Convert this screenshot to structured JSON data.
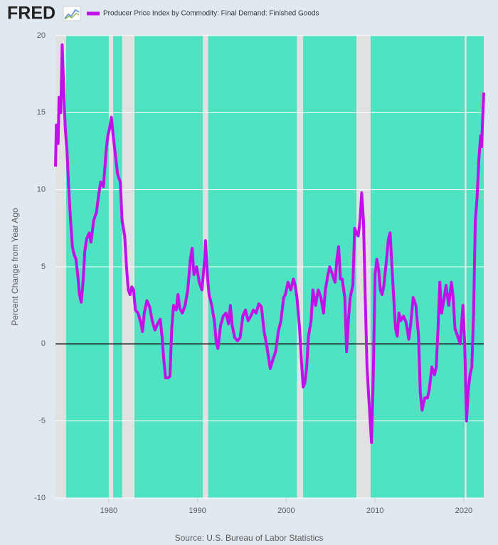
{
  "logo": "FRED",
  "chart_data": {
    "type": "line",
    "y_label": "Percent Change from Year Ago",
    "source": "Source: U.S. Bureau of Labor Statistics",
    "xlim": [
      1974.0,
      2022.25
    ],
    "xticks": [
      1980,
      1990,
      2000,
      2010,
      2020
    ],
    "ylim": [
      -10,
      20
    ],
    "yticks": [
      -10,
      -5,
      0,
      5,
      10,
      15,
      20
    ],
    "grid": true,
    "zero_line": true,
    "recessions": [
      [
        1973.9,
        1975.2
      ],
      [
        1980.0,
        1980.5
      ],
      [
        1981.5,
        1982.9
      ],
      [
        1990.6,
        1991.2
      ],
      [
        2001.2,
        2001.9
      ],
      [
        2007.9,
        2009.5
      ],
      [
        2020.1,
        2020.3
      ]
    ],
    "x": [
      1974.0,
      1974.1,
      1974.3,
      1974.4,
      1974.6,
      1974.75,
      1974.9,
      1975.1,
      1975.3,
      1975.5,
      1975.7,
      1975.9,
      1976.1,
      1976.3,
      1976.5,
      1976.7,
      1976.9,
      1977.1,
      1977.3,
      1977.5,
      1977.8,
      1978.0,
      1978.3,
      1978.6,
      1978.9,
      1979.1,
      1979.4,
      1979.7,
      1979.9,
      1980.1,
      1980.3,
      1980.5,
      1980.8,
      1981.0,
      1981.3,
      1981.5,
      1981.8,
      1982.0,
      1982.2,
      1982.4,
      1982.6,
      1982.8,
      1983.0,
      1983.3,
      1983.6,
      1983.8,
      1984.0,
      1984.3,
      1984.6,
      1984.9,
      1985.2,
      1985.5,
      1985.8,
      1986.0,
      1986.2,
      1986.4,
      1986.7,
      1986.9,
      1987.1,
      1987.3,
      1987.6,
      1987.8,
      1988.0,
      1988.3,
      1988.6,
      1988.9,
      1989.2,
      1989.4,
      1989.6,
      1989.9,
      1990.2,
      1990.5,
      1990.8,
      1990.9,
      1991.1,
      1991.3,
      1991.6,
      1991.9,
      1992.1,
      1992.3,
      1992.6,
      1992.9,
      1993.2,
      1993.5,
      1993.7,
      1993.9,
      1994.2,
      1994.5,
      1994.8,
      1995.1,
      1995.4,
      1995.7,
      1996.0,
      1996.3,
      1996.6,
      1996.9,
      1997.2,
      1997.5,
      1997.7,
      1997.9,
      1998.2,
      1998.5,
      1998.8,
      1999.1,
      1999.4,
      1999.7,
      1999.9,
      2000.2,
      2000.5,
      2000.8,
      2001.0,
      2001.2,
      2001.5,
      2001.7,
      2001.9,
      2002.1,
      2002.3,
      2002.5,
      2002.8,
      2003.0,
      2003.3,
      2003.6,
      2003.9,
      2004.2,
      2004.4,
      2004.7,
      2004.9,
      2005.2,
      2005.5,
      2005.7,
      2005.9,
      2006.1,
      2006.3,
      2006.6,
      2006.8,
      2007.0,
      2007.2,
      2007.5,
      2007.7,
      2007.9,
      2008.1,
      2008.3,
      2008.5,
      2008.7,
      2008.9,
      2009.1,
      2009.3,
      2009.45,
      2009.6,
      2009.8,
      2010.0,
      2010.2,
      2010.4,
      2010.6,
      2010.8,
      2011.0,
      2011.3,
      2011.5,
      2011.7,
      2011.9,
      2012.1,
      2012.3,
      2012.5,
      2012.7,
      2012.9,
      2013.2,
      2013.5,
      2013.8,
      2014.0,
      2014.3,
      2014.6,
      2014.9,
      2015.1,
      2015.3,
      2015.6,
      2015.9,
      2016.1,
      2016.4,
      2016.7,
      2016.9,
      2017.1,
      2017.3,
      2017.5,
      2017.8,
      2018.0,
      2018.3,
      2018.6,
      2018.8,
      2019.0,
      2019.3,
      2019.6,
      2019.9,
      2020.1,
      2020.3,
      2020.5,
      2020.7,
      2020.9,
      2021.1,
      2021.3,
      2021.5,
      2021.7,
      2021.9,
      2022.0,
      2022.15,
      2022.25
    ],
    "series": [
      {
        "name": "Producer Price Index by Commodity: Final Demand: Finished Goods",
        "color": "#c011e8",
        "values": [
          11.5,
          14.2,
          13,
          16,
          15,
          19.4,
          17,
          14,
          12.5,
          10,
          8,
          6.3,
          5.8,
          5.5,
          4.5,
          3.2,
          2.7,
          4,
          6,
          6.8,
          7.2,
          6.6,
          8,
          8.5,
          9.8,
          10.5,
          10.2,
          12.5,
          13.5,
          14,
          14.7,
          13.5,
          12,
          11,
          10.5,
          8,
          7,
          5,
          3.5,
          3.2,
          3.7,
          3.5,
          2.2,
          2.0,
          1.4,
          0.8,
          2,
          2.8,
          2.4,
          1.5,
          0.9,
          1.3,
          1.6,
          0.5,
          -1,
          -2.2,
          -2.2,
          -2.1,
          1,
          2.5,
          2.2,
          3.2,
          2.3,
          2,
          2.5,
          3.5,
          5.5,
          6.2,
          4.5,
          5,
          4,
          3.5,
          5.5,
          6.7,
          4.5,
          3.2,
          2.5,
          1.5,
          0.2,
          -0.3,
          1.2,
          1.8,
          2,
          1.3,
          2.5,
          1.2,
          0.4,
          0.2,
          0.4,
          1.8,
          2.2,
          1.5,
          1.8,
          2.2,
          2.0,
          2.6,
          2.4,
          0.8,
          0.2,
          -0.5,
          -1.6,
          -1.0,
          -0.5,
          0.8,
          1.5,
          3,
          3.2,
          4,
          3.5,
          4.2,
          3.8,
          3,
          1,
          -1,
          -2.8,
          -2.5,
          -1.5,
          0.5,
          1.5,
          3.5,
          2.5,
          3.5,
          3.0,
          2,
          3.5,
          4.5,
          5,
          4.5,
          4,
          5.5,
          6.3,
          4.2,
          4.2,
          3,
          -0.5,
          1.5,
          3,
          3.8,
          7.5,
          7.2,
          7,
          8,
          9.8,
          8,
          3,
          -1.5,
          -3.5,
          -5,
          -6.4,
          -2,
          4.5,
          5.5,
          4.8,
          3.5,
          3.2,
          3.8,
          5.5,
          6.8,
          7.2,
          5,
          3,
          1,
          0.5,
          2,
          1.5,
          1.8,
          1.4,
          0.3,
          1.2,
          3,
          2.5,
          0.5,
          -3.2,
          -4.3,
          -3.5,
          -3.5,
          -3,
          -1.5,
          -2,
          -1.5,
          1,
          4,
          2,
          3,
          3.8,
          2.5,
          4,
          3,
          1,
          0.5,
          0,
          2.5,
          0,
          -5,
          -3,
          -2,
          -1.5,
          2,
          8,
          9.5,
          12,
          13.5,
          12.8,
          15,
          16.3
        ]
      }
    ]
  }
}
